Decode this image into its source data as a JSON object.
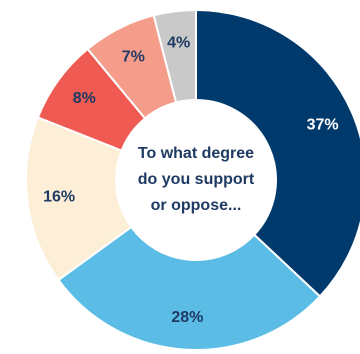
{
  "chart_data": {
    "type": "pie",
    "title": "",
    "center_text": {
      "lines": [
        "To what degree",
        "do you support",
        "or oppose..."
      ]
    },
    "slices": [
      {
        "label": "37%",
        "value": 37,
        "color": "#003a6d",
        "label_color": "#ffffff"
      },
      {
        "label": "28%",
        "value": 28,
        "color": "#5bbde6",
        "label_color": "#1f3a63"
      },
      {
        "label": "16%",
        "value": 16,
        "color": "#fdefd7",
        "label_color": "#1f3a63"
      },
      {
        "label": "8%",
        "value": 8,
        "color": "#ef5b52",
        "label_color": "#1f3a63"
      },
      {
        "label": "7%",
        "value": 7,
        "color": "#f59c8b",
        "label_color": "#1f3a63"
      },
      {
        "label": "4%",
        "value": 4,
        "color": "#c9c9c9",
        "label_color": "#1f3a63"
      }
    ],
    "start_angle_deg": 0,
    "direction": "clockwise"
  }
}
